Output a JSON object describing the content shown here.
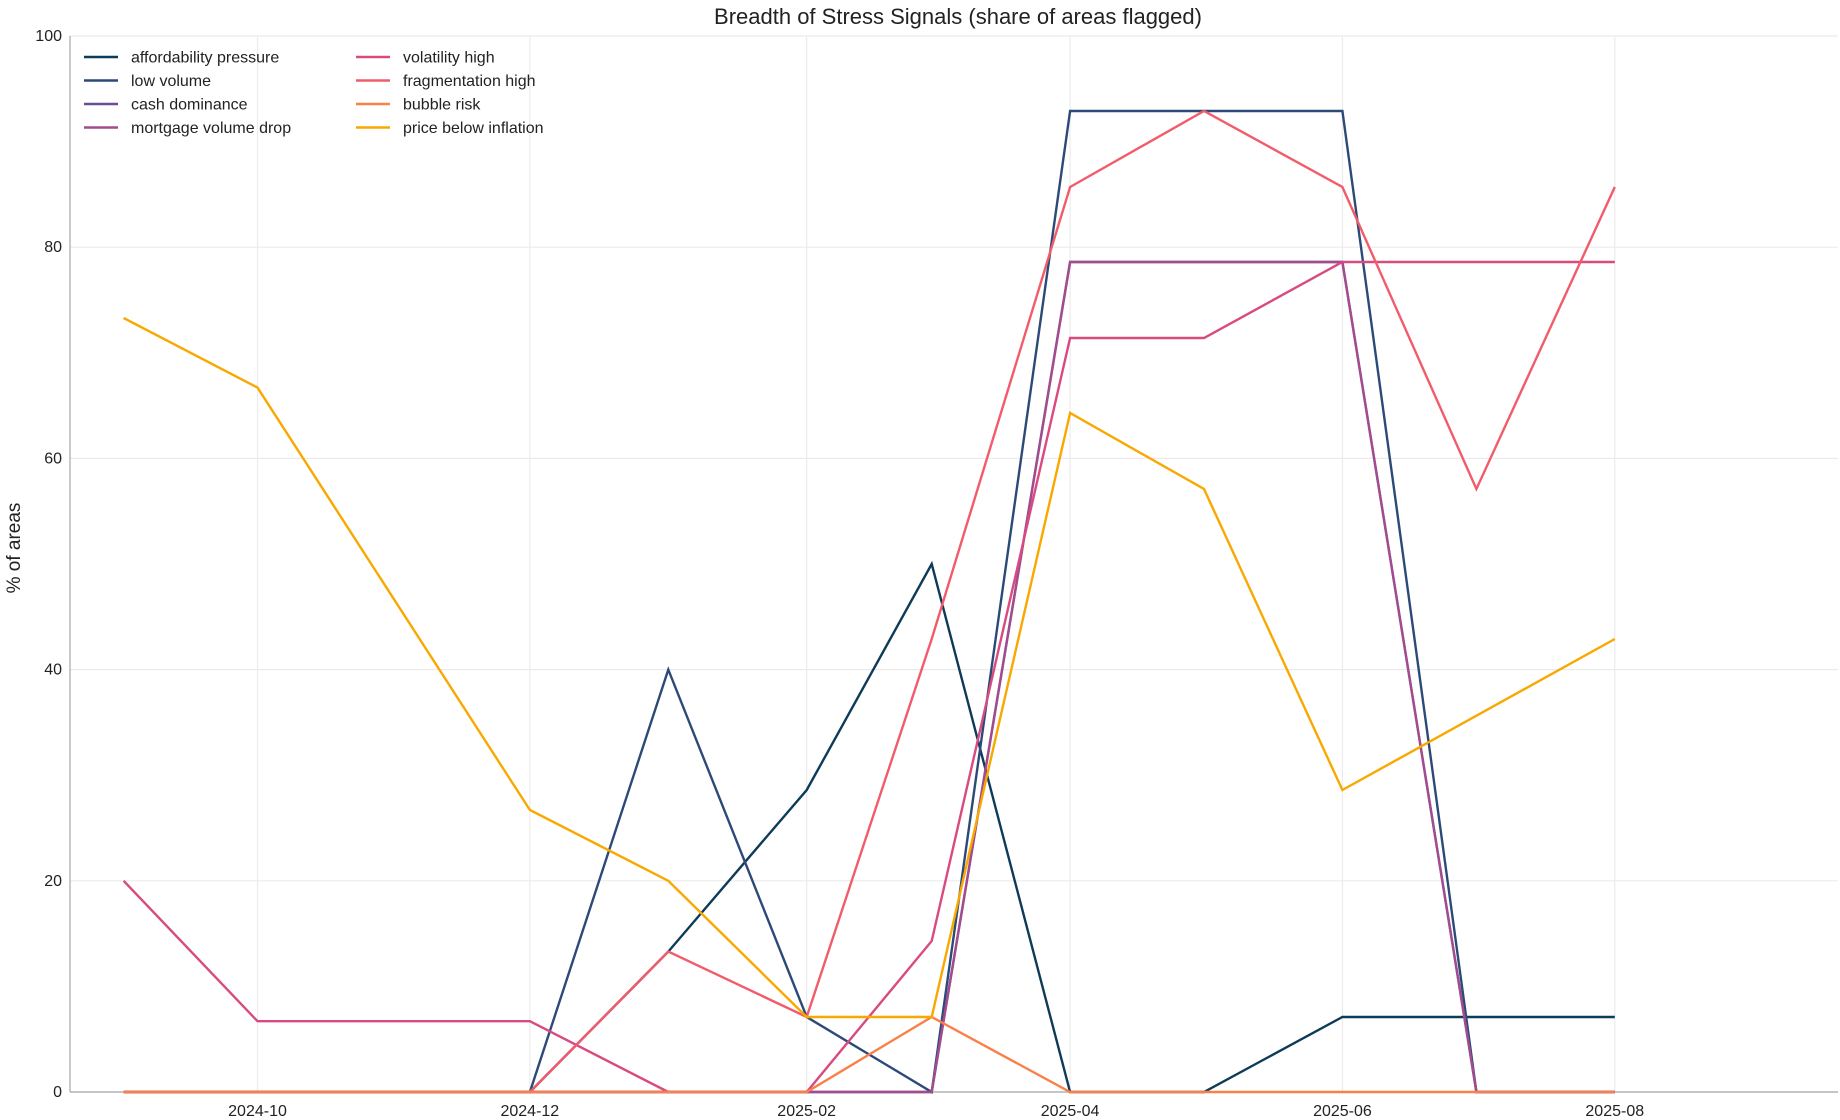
{
  "chart_data": {
    "type": "line",
    "title": "Breadth of Stress Signals (share of areas flagged)",
    "xlabel": "",
    "ylabel": "% of areas",
    "ylim": [
      0,
      100
    ],
    "xlim": [
      "2024-08-20",
      "2025-09-20"
    ],
    "x": [
      "2024-09-01",
      "2024-10-01",
      "2024-11-01",
      "2024-12-01",
      "2025-01-01",
      "2025-02-01",
      "2025-03-01",
      "2025-04-01",
      "2025-05-01",
      "2025-06-01",
      "2025-07-01",
      "2025-08-01"
    ],
    "xticks": [
      "2024-10-01",
      "2024-12-01",
      "2025-02-01",
      "2025-04-01",
      "2025-06-01",
      "2025-08-01"
    ],
    "xtick_labels": [
      "2024-10",
      "2024-12",
      "2025-02",
      "2025-04",
      "2025-06",
      "2025-08"
    ],
    "yticks": [
      0,
      20,
      40,
      60,
      80,
      100
    ],
    "grid": true,
    "legend_position": "top-left",
    "series": [
      {
        "name": "affordability pressure",
        "color": "#0d3b58",
        "values": [
          0,
          0,
          0,
          0,
          13.3,
          28.6,
          50,
          0,
          0,
          7.1,
          7.1,
          7.1
        ]
      },
      {
        "name": "low volume",
        "color": "#2c4a78",
        "values": [
          0,
          0,
          0,
          0,
          40,
          7.1,
          0,
          92.9,
          92.9,
          92.9,
          0,
          0
        ]
      },
      {
        "name": "cash dominance",
        "color": "#6a4e94",
        "values": [
          0,
          0,
          0,
          0,
          0,
          0,
          0,
          78.6,
          78.6,
          78.6,
          0,
          0
        ]
      },
      {
        "name": "mortgage volume drop",
        "color": "#a24b8e",
        "values": [
          0,
          0,
          0,
          0,
          0,
          0,
          0,
          78.6,
          78.6,
          78.6,
          0,
          0
        ]
      },
      {
        "name": "volatility high",
        "color": "#d94a80",
        "values": [
          20,
          6.7,
          6.7,
          6.7,
          0,
          0,
          14.3,
          71.4,
          71.4,
          78.6,
          78.6,
          78.6
        ]
      },
      {
        "name": "fragmentation high",
        "color": "#f25c6a",
        "values": [
          0,
          0,
          0,
          0,
          13.3,
          7.1,
          42.9,
          85.7,
          92.9,
          85.7,
          57.1,
          85.7
        ]
      },
      {
        "name": "bubble risk",
        "color": "#f98047",
        "values": [
          0,
          0,
          0,
          0,
          0,
          0,
          7.1,
          0,
          0,
          0,
          0,
          0
        ]
      },
      {
        "name": "price below inflation",
        "color": "#f9a800",
        "values": [
          73.3,
          66.7,
          null,
          26.7,
          20,
          7.1,
          7.1,
          64.3,
          57.1,
          28.6,
          null,
          42.9
        ]
      }
    ]
  }
}
